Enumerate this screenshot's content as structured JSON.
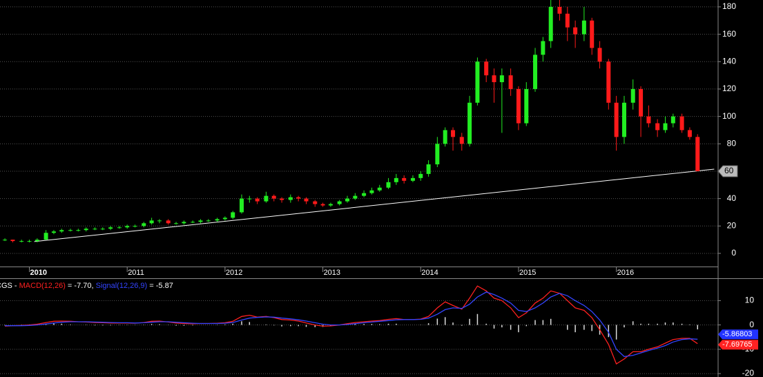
{
  "chart_data": [
    {
      "type": "candlestick",
      "x": [
        2009.75,
        2009.83,
        2009.92,
        2010.0,
        2010.08,
        2010.17,
        2010.25,
        2010.33,
        2010.42,
        2010.5,
        2010.58,
        2010.67,
        2010.75,
        2010.83,
        2010.92,
        2011.0,
        2011.08,
        2011.17,
        2011.25,
        2011.33,
        2011.42,
        2011.5,
        2011.58,
        2011.67,
        2011.75,
        2011.83,
        2011.92,
        2012.0,
        2012.08,
        2012.17,
        2012.25,
        2012.33,
        2012.42,
        2012.5,
        2012.58,
        2012.67,
        2012.75,
        2012.83,
        2012.92,
        2013.0,
        2013.08,
        2013.17,
        2013.25,
        2013.33,
        2013.42,
        2013.5,
        2013.58,
        2013.67,
        2013.75,
        2013.83,
        2013.92,
        2014.0,
        2014.08,
        2014.17,
        2014.25,
        2014.33,
        2014.42,
        2014.5,
        2014.58,
        2014.67,
        2014.75,
        2014.83,
        2014.92,
        2015.0,
        2015.08,
        2015.17,
        2015.25,
        2015.33,
        2015.42,
        2015.5,
        2015.58,
        2015.67,
        2015.75,
        2015.83,
        2015.92,
        2016.0,
        2016.08,
        2016.17,
        2016.25,
        2016.33,
        2016.42,
        2016.5,
        2016.58,
        2016.67,
        2016.75,
        2016.83
      ],
      "open": [
        10,
        10,
        9,
        9,
        9,
        10,
        15,
        16,
        17,
        17,
        17,
        18,
        18,
        18,
        19,
        19,
        20,
        20,
        22,
        24,
        24,
        22,
        22,
        23,
        23,
        24,
        24,
        25,
        26,
        30,
        40,
        40,
        38,
        42,
        40,
        39,
        41,
        40,
        38,
        36,
        35,
        36,
        38,
        40,
        42,
        44,
        46,
        48,
        52,
        55,
        53,
        55,
        58,
        65,
        80,
        90,
        85,
        80,
        110,
        140,
        130,
        125,
        130,
        120,
        95,
        120,
        145,
        155,
        180,
        175,
        165,
        160,
        170,
        150,
        140,
        110,
        85,
        110,
        120,
        100,
        95,
        90,
        95,
        100,
        90,
        85
      ],
      "high": [
        11,
        10,
        10,
        10,
        11,
        17,
        17,
        18,
        18,
        18,
        19,
        19,
        19,
        20,
        20,
        21,
        21,
        23,
        26,
        25,
        25,
        23,
        24,
        24,
        25,
        25,
        26,
        27,
        31,
        43,
        42,
        41,
        45,
        43,
        41,
        43,
        42,
        41,
        39,
        37,
        37,
        39,
        42,
        44,
        46,
        48,
        50,
        55,
        58,
        57,
        57,
        60,
        68,
        85,
        92,
        92,
        88,
        115,
        143,
        142,
        135,
        135,
        135,
        122,
        125,
        150,
        158,
        185,
        185,
        180,
        170,
        180,
        172,
        155,
        142,
        115,
        115,
        127,
        122,
        108,
        98,
        100,
        102,
        102,
        92,
        87
      ],
      "low": [
        9,
        8,
        8,
        8,
        8,
        10,
        14,
        15,
        16,
        16,
        16,
        17,
        17,
        17,
        18,
        18,
        19,
        19,
        21,
        22,
        21,
        21,
        21,
        22,
        22,
        23,
        23,
        24,
        25,
        29,
        37,
        36,
        37,
        38,
        37,
        37,
        38,
        36,
        34,
        34,
        34,
        35,
        37,
        39,
        41,
        43,
        45,
        47,
        50,
        51,
        52,
        53,
        56,
        63,
        78,
        75,
        75,
        78,
        108,
        125,
        110,
        88,
        115,
        90,
        93,
        118,
        140,
        150,
        170,
        155,
        150,
        155,
        145,
        135,
        105,
        75,
        80,
        105,
        85,
        92,
        85,
        88,
        92,
        88,
        83,
        60
      ],
      "close": [
        10,
        9,
        9,
        9,
        10,
        15,
        16,
        17,
        17,
        17,
        18,
        18,
        18,
        19,
        19,
        20,
        20,
        22,
        24,
        24,
        22,
        22,
        23,
        23,
        24,
        24,
        25,
        26,
        30,
        40,
        40,
        38,
        42,
        40,
        39,
        41,
        40,
        38,
        36,
        35,
        36,
        38,
        40,
        42,
        44,
        46,
        48,
        52,
        55,
        53,
        55,
        58,
        65,
        80,
        90,
        85,
        80,
        110,
        140,
        130,
        125,
        130,
        120,
        95,
        120,
        145,
        155,
        180,
        175,
        165,
        160,
        170,
        150,
        140,
        110,
        85,
        110,
        120,
        100,
        95,
        90,
        95,
        100,
        90,
        85,
        60
      ],
      "up_color": "#22ee22",
      "down_color": "#ff1a1a",
      "xlim": [
        2009.7,
        2017.04
      ],
      "xticks": [
        2010,
        2011,
        2012,
        2013,
        2014,
        2015,
        2016
      ],
      "ylim": [
        -9.6,
        185
      ],
      "yticks": [
        0,
        20,
        40,
        60,
        80,
        100,
        120,
        140,
        160,
        180
      ],
      "grid": true,
      "trendline": {
        "x": [
          2010.05,
          2017.0
        ],
        "y": [
          8.6,
          61.5
        ],
        "color": "#ffffff"
      },
      "price_tag": 60
    },
    {
      "type": "macd",
      "x": [
        2009.75,
        2009.83,
        2009.92,
        2010.0,
        2010.08,
        2010.17,
        2010.25,
        2010.33,
        2010.42,
        2010.5,
        2010.58,
        2010.67,
        2010.75,
        2010.83,
        2010.92,
        2011.0,
        2011.08,
        2011.17,
        2011.25,
        2011.33,
        2011.42,
        2011.5,
        2011.58,
        2011.67,
        2011.75,
        2011.83,
        2011.92,
        2012.0,
        2012.08,
        2012.17,
        2012.25,
        2012.33,
        2012.42,
        2012.5,
        2012.58,
        2012.67,
        2012.75,
        2012.83,
        2012.92,
        2013.0,
        2013.08,
        2013.17,
        2013.25,
        2013.33,
        2013.42,
        2013.5,
        2013.58,
        2013.67,
        2013.75,
        2013.83,
        2013.92,
        2014.0,
        2014.08,
        2014.17,
        2014.25,
        2014.33,
        2014.42,
        2014.5,
        2014.58,
        2014.67,
        2014.75,
        2014.83,
        2014.92,
        2015.0,
        2015.08,
        2015.17,
        2015.25,
        2015.33,
        2015.42,
        2015.5,
        2015.58,
        2015.67,
        2015.75,
        2015.83,
        2015.92,
        2016.0,
        2016.08,
        2016.17,
        2016.25,
        2016.33,
        2016.42,
        2016.5,
        2016.58,
        2016.67,
        2016.75,
        2016.83
      ],
      "legend": [
        {
          "text": "CGS - ",
          "color": "#ffffff"
        },
        {
          "text": "MACD(12,26)",
          "color": "#ff2020"
        },
        {
          "text": " = -7.70, ",
          "color": "#ffffff"
        },
        {
          "text": "Signal(12,26,9)",
          "color": "#3344ff"
        },
        {
          "text": " = -5.87",
          "color": "#ffffff"
        }
      ],
      "series": [
        {
          "color": "#ff2020",
          "values": [
            -0.5,
            -0.3,
            -0.2,
            0,
            0.3,
            1,
            1.5,
            1.6,
            1.5,
            1.3,
            1.2,
            1,
            0.9,
            0.8,
            0.8,
            0.8,
            0.7,
            1,
            1.5,
            1.6,
            1.2,
            0.8,
            0.6,
            0.5,
            0.6,
            0.6,
            0.7,
            0.9,
            1.5,
            3.5,
            4,
            3.2,
            3.5,
            3,
            2.2,
            2,
            1.6,
            0.8,
            0,
            -0.5,
            -0.4,
            0,
            0.5,
            1,
            1.3,
            1.6,
            1.8,
            2.3,
            2.6,
            2.2,
            2.2,
            2.4,
            3.5,
            7,
            9.5,
            8,
            6.5,
            11,
            16,
            14,
            11,
            10,
            7,
            3,
            5,
            9,
            11,
            14,
            13,
            10,
            7,
            6,
            3,
            -2,
            -8,
            -16,
            -14,
            -11,
            -11,
            -10,
            -9,
            -7.5,
            -6,
            -5.5,
            -5.5,
            -7.7
          ]
        },
        {
          "color": "#3344ff",
          "values": [
            -0.3,
            -0.3,
            -0.3,
            -0.2,
            0,
            0.4,
            0.8,
            1.1,
            1.3,
            1.3,
            1.3,
            1.2,
            1.1,
            1,
            0.9,
            0.9,
            0.8,
            0.9,
            1.1,
            1.3,
            1.3,
            1.1,
            0.9,
            0.7,
            0.6,
            0.6,
            0.6,
            0.7,
            1,
            2,
            2.8,
            3.1,
            3.3,
            3.2,
            2.8,
            2.5,
            2.1,
            1.6,
            0.9,
            0.3,
            0,
            0,
            0.2,
            0.5,
            0.9,
            1.2,
            1.5,
            1.8,
            2.1,
            2.2,
            2.2,
            2.3,
            2.8,
            4.4,
            6.3,
            7,
            6.8,
            8.5,
            11.5,
            13.5,
            12.5,
            11,
            9,
            6,
            5.5,
            7,
            9,
            11.5,
            13,
            12,
            10,
            8,
            5.5,
            2,
            -3,
            -10,
            -13,
            -12.5,
            -11.5,
            -10.5,
            -9.5,
            -8.5,
            -7,
            -6,
            -5.7,
            -5.87
          ]
        }
      ],
      "histogram": {
        "color": "#dddddd",
        "values": [
          -0.2,
          0,
          0.1,
          0.2,
          0.3,
          0.6,
          0.7,
          0.5,
          0.2,
          0,
          -0.1,
          -0.2,
          -0.2,
          -0.2,
          -0.1,
          -0.1,
          -0.1,
          0.1,
          0.4,
          0.3,
          -0.1,
          -0.3,
          -0.3,
          -0.2,
          0,
          0,
          0.1,
          0.2,
          0.5,
          1.5,
          1.2,
          0.1,
          0.2,
          -0.2,
          -0.6,
          -0.5,
          -0.5,
          -0.8,
          -0.9,
          -0.8,
          -0.4,
          0,
          0.3,
          0.5,
          0.4,
          0.4,
          0.3,
          0.5,
          0.5,
          0,
          0,
          0.1,
          0.7,
          2.6,
          3.2,
          1,
          -0.3,
          2.5,
          4.5,
          0.5,
          -1.5,
          -1,
          -2,
          -3,
          -0.5,
          2,
          2,
          2.5,
          0,
          -2,
          -3,
          -2,
          -2.5,
          -4,
          -5,
          -6,
          -1,
          1.5,
          0.5,
          0.5,
          0.5,
          1,
          1,
          0.5,
          0.2,
          -1.83
        ]
      },
      "value_tags": [
        {
          "value": -5.86803,
          "color": "#2233ff"
        },
        {
          "value": -7.69765,
          "color": "#ff2222"
        }
      ],
      "xlim": [
        2009.7,
        2017.04
      ],
      "ylim": [
        -21.4,
        18.9
      ],
      "yticks": [
        -20,
        -10,
        0,
        10
      ],
      "grid": true
    }
  ]
}
